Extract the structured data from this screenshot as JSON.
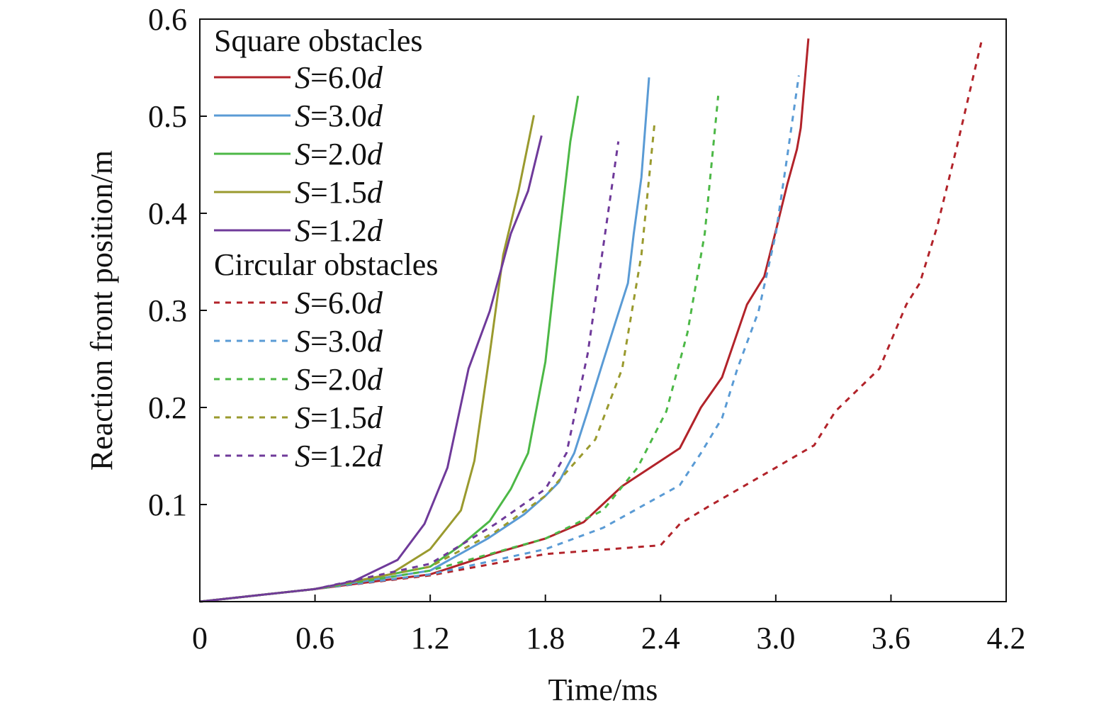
{
  "chart_data": {
    "type": "line",
    "xlabel": "Time/ms",
    "ylabel": "Reaction front position/m",
    "xlim": [
      0,
      4.2
    ],
    "ylim": [
      0,
      0.6
    ],
    "xticks": [
      "0",
      "0.6",
      "1.2",
      "1.8",
      "2.4",
      "3.0",
      "3.6",
      "4.2"
    ],
    "yticks": [
      "0.1",
      "0.2",
      "0.3",
      "0.4",
      "0.5",
      "0.6"
    ],
    "grid": false,
    "legend_placement": "top-left",
    "legend_groups": [
      "Square obstacles",
      "Circular obstacles"
    ],
    "series": [
      {
        "name": "S=6.0d",
        "group": "Square obstacles",
        "style": "solid",
        "color": "#b2232a",
        "points": [
          [
            0,
            0
          ],
          [
            0.6,
            0.013
          ],
          [
            1.2,
            0.028
          ],
          [
            1.54,
            0.05
          ],
          [
            1.8,
            0.065
          ],
          [
            2.0,
            0.082
          ],
          [
            2.2,
            0.119
          ],
          [
            2.4,
            0.145
          ],
          [
            2.5,
            0.158
          ],
          [
            2.61,
            0.2
          ],
          [
            2.72,
            0.231
          ],
          [
            2.85,
            0.306
          ],
          [
            2.94,
            0.335
          ],
          [
            3.0,
            0.382
          ],
          [
            3.06,
            0.43
          ],
          [
            3.11,
            0.466
          ],
          [
            3.13,
            0.488
          ],
          [
            3.17,
            0.58
          ]
        ]
      },
      {
        "name": "S=3.0d",
        "group": "Square obstacles",
        "style": "solid",
        "color": "#5a9bd5",
        "points": [
          [
            0,
            0
          ],
          [
            0.6,
            0.013
          ],
          [
            1.2,
            0.032
          ],
          [
            1.5,
            0.065
          ],
          [
            1.69,
            0.09
          ],
          [
            1.8,
            0.109
          ],
          [
            1.87,
            0.123
          ],
          [
            1.95,
            0.153
          ],
          [
            2.02,
            0.196
          ],
          [
            2.1,
            0.247
          ],
          [
            2.17,
            0.291
          ],
          [
            2.23,
            0.328
          ],
          [
            2.26,
            0.379
          ],
          [
            2.3,
            0.437
          ],
          [
            2.34,
            0.54
          ]
        ]
      },
      {
        "name": "S=2.0d",
        "group": "Square obstacles",
        "style": "solid",
        "color": "#4cb846",
        "points": [
          [
            0,
            0
          ],
          [
            0.6,
            0.013
          ],
          [
            1.2,
            0.036
          ],
          [
            1.36,
            0.058
          ],
          [
            1.51,
            0.083
          ],
          [
            1.62,
            0.116
          ],
          [
            1.71,
            0.153
          ],
          [
            1.8,
            0.247
          ],
          [
            1.87,
            0.372
          ],
          [
            1.93,
            0.474
          ],
          [
            1.97,
            0.521
          ]
        ]
      },
      {
        "name": "S=1.5d",
        "group": "Square obstacles",
        "style": "solid",
        "color": "#9a9a2e",
        "points": [
          [
            0,
            0
          ],
          [
            0.6,
            0.013
          ],
          [
            0.99,
            0.028
          ],
          [
            1.2,
            0.054
          ],
          [
            1.36,
            0.094
          ],
          [
            1.43,
            0.145
          ],
          [
            1.51,
            0.255
          ],
          [
            1.58,
            0.357
          ],
          [
            1.66,
            0.423
          ],
          [
            1.74,
            0.501
          ]
        ]
      },
      {
        "name": "S=1.2d",
        "group": "Square obstacles",
        "style": "solid",
        "color": "#6f3a9a",
        "points": [
          [
            0,
            0
          ],
          [
            0.6,
            0.013
          ],
          [
            0.8,
            0.021
          ],
          [
            1.03,
            0.043
          ],
          [
            1.17,
            0.08
          ],
          [
            1.29,
            0.138
          ],
          [
            1.4,
            0.24
          ],
          [
            1.51,
            0.299
          ],
          [
            1.62,
            0.379
          ],
          [
            1.71,
            0.423
          ],
          [
            1.78,
            0.48
          ]
        ]
      },
      {
        "name": "S=6.0d",
        "group": "Circular obstacles",
        "style": "dashed",
        "color": "#b2232a",
        "points": [
          [
            0,
            0
          ],
          [
            0.6,
            0.013
          ],
          [
            1.2,
            0.027
          ],
          [
            1.8,
            0.049
          ],
          [
            2.4,
            0.058
          ],
          [
            2.5,
            0.08
          ],
          [
            2.65,
            0.098
          ],
          [
            3.0,
            0.138
          ],
          [
            3.2,
            0.161
          ],
          [
            3.31,
            0.196
          ],
          [
            3.54,
            0.24
          ],
          [
            3.68,
            0.306
          ],
          [
            3.75,
            0.328
          ],
          [
            3.84,
            0.386
          ],
          [
            3.94,
            0.466
          ],
          [
            4.07,
            0.576
          ]
        ]
      },
      {
        "name": "S=3.0d",
        "group": "Circular obstacles",
        "style": "dashed",
        "color": "#5a9bd5",
        "points": [
          [
            0,
            0
          ],
          [
            0.6,
            0.013
          ],
          [
            1.2,
            0.028
          ],
          [
            1.8,
            0.054
          ],
          [
            2.1,
            0.076
          ],
          [
            2.4,
            0.109
          ],
          [
            2.5,
            0.12
          ],
          [
            2.61,
            0.153
          ],
          [
            2.72,
            0.189
          ],
          [
            2.8,
            0.24
          ],
          [
            2.91,
            0.299
          ],
          [
            3.0,
            0.379
          ],
          [
            3.06,
            0.459
          ],
          [
            3.12,
            0.542
          ]
        ]
      },
      {
        "name": "S=2.0d",
        "group": "Circular obstacles",
        "style": "dashed",
        "color": "#4cb846",
        "points": [
          [
            0,
            0
          ],
          [
            0.6,
            0.013
          ],
          [
            1.2,
            0.032
          ],
          [
            1.8,
            0.065
          ],
          [
            2.1,
            0.094
          ],
          [
            2.28,
            0.138
          ],
          [
            2.43,
            0.196
          ],
          [
            2.54,
            0.277
          ],
          [
            2.63,
            0.379
          ],
          [
            2.7,
            0.521
          ]
        ]
      },
      {
        "name": "S=1.5d",
        "group": "Circular obstacles",
        "style": "dashed",
        "color": "#9a9a2e",
        "points": [
          [
            0,
            0
          ],
          [
            0.6,
            0.013
          ],
          [
            1.2,
            0.036
          ],
          [
            1.54,
            0.072
          ],
          [
            1.8,
            0.109
          ],
          [
            2.06,
            0.167
          ],
          [
            2.2,
            0.24
          ],
          [
            2.3,
            0.357
          ],
          [
            2.37,
            0.496
          ]
        ]
      },
      {
        "name": "S=1.2d",
        "group": "Circular obstacles",
        "style": "dashed",
        "color": "#6f3a9a",
        "points": [
          [
            0,
            0
          ],
          [
            0.6,
            0.013
          ],
          [
            1.2,
            0.039
          ],
          [
            1.54,
            0.08
          ],
          [
            1.8,
            0.116
          ],
          [
            1.91,
            0.153
          ],
          [
            2.02,
            0.255
          ],
          [
            2.1,
            0.364
          ],
          [
            2.18,
            0.474
          ]
        ]
      }
    ]
  }
}
